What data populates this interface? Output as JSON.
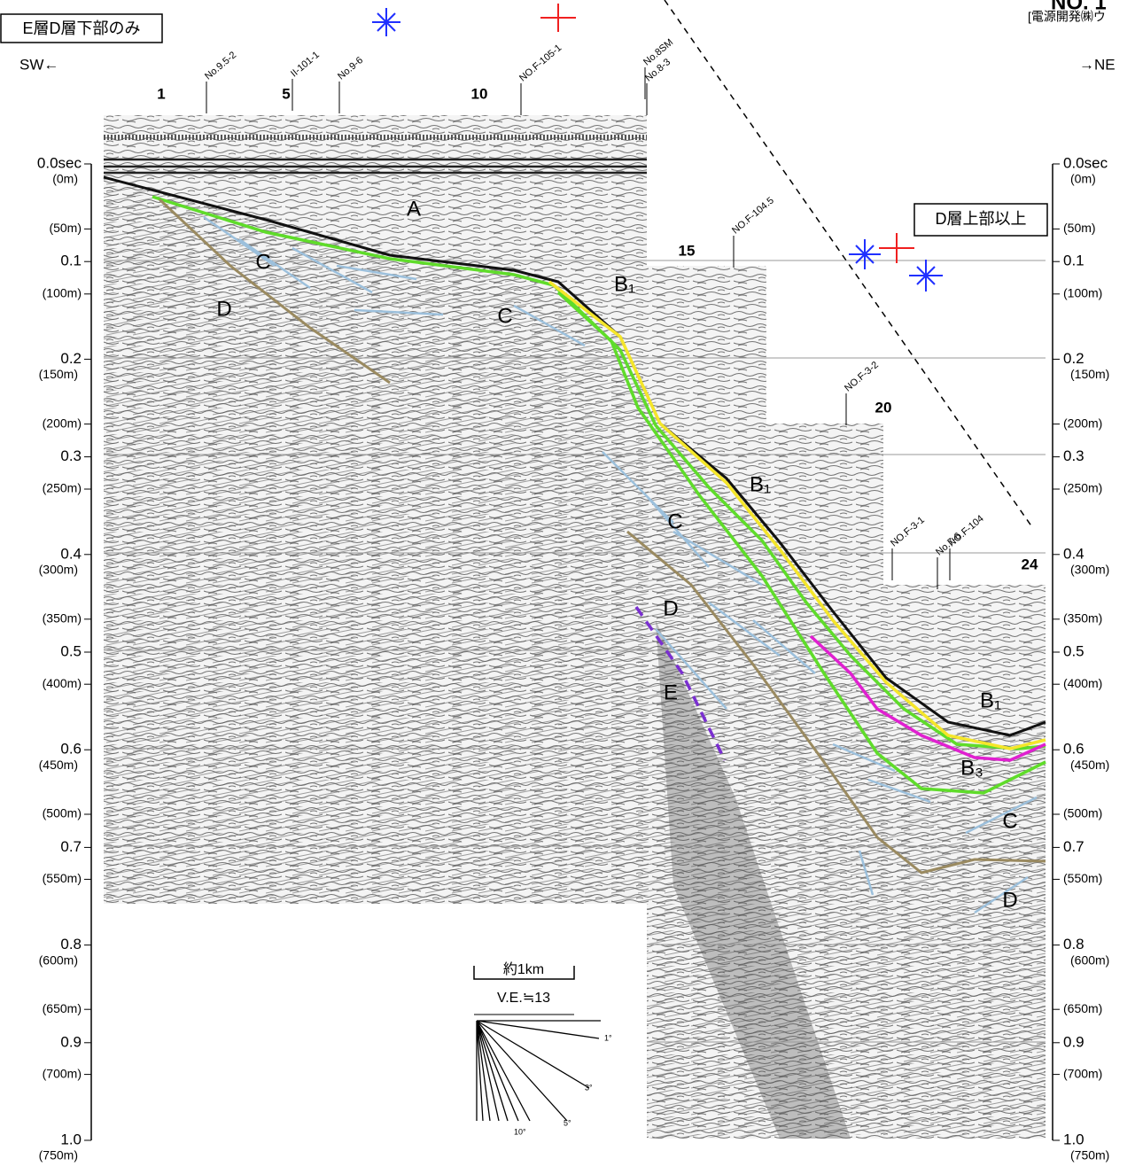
{
  "header": {
    "title": "NO. 1",
    "source": "[電源開発㈱ウ"
  },
  "notes": {
    "left": "E層D層下部のみ",
    "right": "D層上部以上"
  },
  "direction": {
    "left": "SW←",
    "right": "→NE"
  },
  "stations": [
    "1",
    "5",
    "10",
    "15",
    "20",
    "24"
  ],
  "boreholes": [
    "No.9.5-2",
    "II-101-1",
    "No.9-6",
    "NO.F-105-1",
    "No.8SM",
    "No.8-3",
    "NO.F-104.5",
    "NO.F-3-2",
    "NO.F-3-1",
    "No.7-6",
    "NO.F-104"
  ],
  "time_axis": [
    "0.0sec",
    "0.1",
    "0.2",
    "0.3",
    "0.4",
    "0.5",
    "0.6",
    "0.7",
    "0.8",
    "0.9",
    "1.0"
  ],
  "depth_axis": [
    "(0m)",
    "(50m)",
    "(100m)",
    "(150m)",
    "(200m)",
    "(250m)",
    "(300m)",
    "(350m)",
    "(400m)",
    "(450m)",
    "(500m)",
    "(550m)",
    "(600m)",
    "(650m)",
    "(700m)",
    "(750m)"
  ],
  "layer_labels": [
    "A",
    "C",
    "D",
    "B₁",
    "C",
    "B₁",
    "C",
    "D",
    "E",
    "B₁",
    "B₃",
    "C",
    "D"
  ],
  "scale": {
    "length": "約1km",
    "ve": "V.E.≒13",
    "angles": [
      "1°",
      "3°",
      "5°",
      "10°"
    ]
  }
}
